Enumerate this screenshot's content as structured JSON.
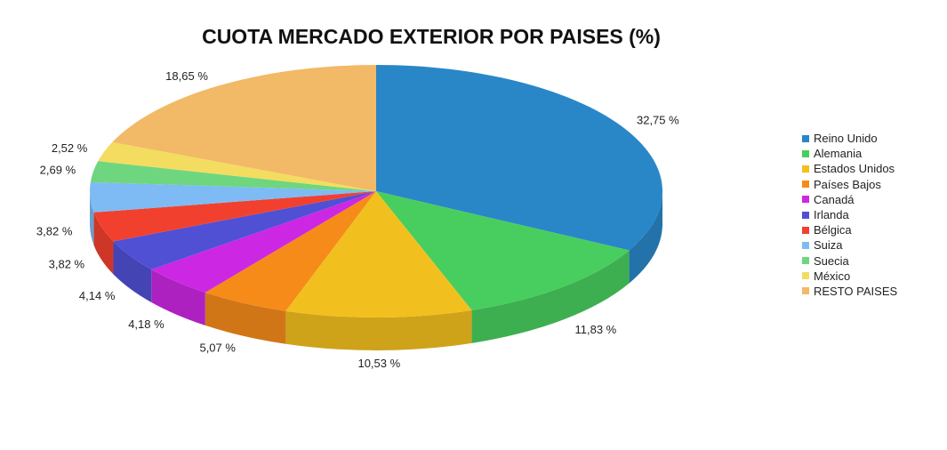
{
  "chart_data": {
    "type": "pie",
    "style": "3d-exploded-free",
    "title": "CUOTA MERCADO EXTERIOR POR PAISES (%)",
    "legend_position": "right",
    "slices": [
      {
        "name": "Reino Unido",
        "value": 32.75,
        "label": "32,75 %",
        "color": "#2987C8"
      },
      {
        "name": "Alemania",
        "value": 11.83,
        "label": "11,83 %",
        "color": "#48CE5E"
      },
      {
        "name": "Estados Unidos",
        "value": 10.53,
        "label": "10,53 %",
        "color": "#F2C01E"
      },
      {
        "name": "Países Bajos",
        "value": 5.07,
        "label": "5,07 %",
        "color": "#F68B1A"
      },
      {
        "name": "Canadá",
        "value": 4.18,
        "label": "4,18 %",
        "color": "#CC27E3"
      },
      {
        "name": "Irlanda",
        "value": 4.14,
        "label": "4,14 %",
        "color": "#5050D5"
      },
      {
        "name": "Bélgica",
        "value": 3.82,
        "label": "3,82 %",
        "color": "#F2402E"
      },
      {
        "name": "Suiza",
        "value": 3.82,
        "label": "3,82 %",
        "color": "#7EBBF4"
      },
      {
        "name": "Suecia",
        "value": 2.69,
        "label": "2,69 %",
        "color": "#6ED67F"
      },
      {
        "name": "México",
        "value": 2.52,
        "label": "2,52 %",
        "color": "#F3DC5F"
      },
      {
        "name": "RESTO PAISES",
        "value": 18.65,
        "label": "18,65 %",
        "color": "#F2B966"
      }
    ]
  }
}
